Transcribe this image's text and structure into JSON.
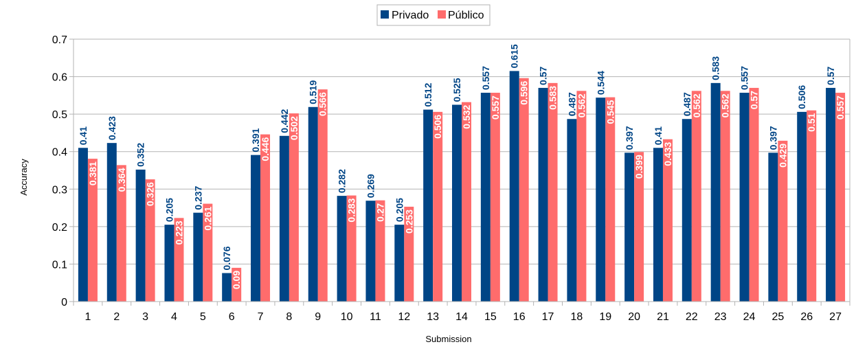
{
  "chart_data": {
    "type": "bar",
    "title": "",
    "xlabel": "Submission",
    "ylabel": "Accuracy",
    "ylim": [
      0,
      0.7
    ],
    "yticks": [
      "0",
      "0.1",
      "0.2",
      "0.3",
      "0.4",
      "0.5",
      "0.6",
      "0.7"
    ],
    "grid": true,
    "legend_position": "top-center",
    "categories": [
      "1",
      "2",
      "3",
      "4",
      "5",
      "6",
      "7",
      "8",
      "9",
      "10",
      "11",
      "12",
      "13",
      "14",
      "15",
      "16",
      "17",
      "18",
      "19",
      "20",
      "21",
      "22",
      "23",
      "24",
      "25",
      "26",
      "27"
    ],
    "series": [
      {
        "name": "Privado",
        "color": "#004586",
        "values": [
          0.41,
          0.423,
          0.352,
          0.205,
          0.237,
          0.076,
          0.391,
          0.442,
          0.519,
          0.282,
          0.269,
          0.205,
          0.512,
          0.525,
          0.557,
          0.615,
          0.57,
          0.487,
          0.544,
          0.397,
          0.41,
          0.487,
          0.583,
          0.557,
          0.397,
          0.506,
          0.57
        ],
        "labels": [
          "0.41",
          "0.423",
          "0.352",
          "0.205",
          "0.237",
          "0.076",
          "0.391",
          "0.442",
          "0.519",
          "0.282",
          "0.269",
          "0.205",
          "0.512",
          "0.525",
          "0.557",
          "0.615",
          "0.57",
          "0.487",
          "0.544",
          "0.397",
          "0.41",
          "0.487",
          "0.583",
          "0.557",
          "0.397",
          "0.506",
          "0.57"
        ]
      },
      {
        "name": "Público",
        "color": "#ff6c6c",
        "values": [
          0.381,
          0.364,
          0.326,
          0.223,
          0.261,
          0.09,
          0.446,
          0.502,
          0.566,
          0.283,
          0.27,
          0.253,
          0.506,
          0.532,
          0.557,
          0.596,
          0.583,
          0.562,
          0.545,
          0.399,
          0.433,
          0.562,
          0.562,
          0.57,
          0.429,
          0.51,
          0.557
        ],
        "labels": [
          "0.381",
          "0.364",
          "0.326",
          "0.223",
          "0.261",
          "0.09",
          "0.446",
          "0.502",
          "0.566",
          "0.283",
          "0.27",
          "0.253",
          "0.506",
          "0.532",
          "0.557",
          "0.596",
          "0.583",
          "0.562",
          "0.545",
          "0.399",
          "0.433",
          "0.562",
          "0.562",
          "0.57",
          "0.429",
          "0.51",
          "0.557"
        ]
      }
    ]
  }
}
